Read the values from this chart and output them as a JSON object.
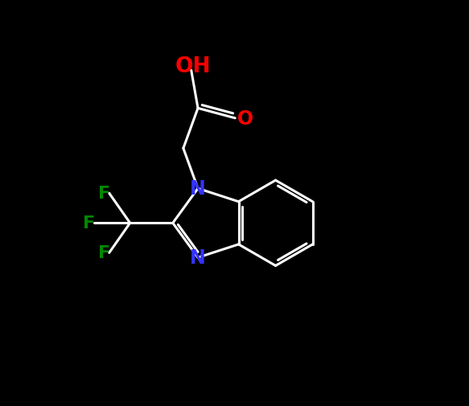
{
  "background_color": "#000000",
  "bond_color": "#ffffff",
  "N_color": "#3333ff",
  "O_color": "#ff0000",
  "F_color": "#008800",
  "line_width": 2.2,
  "font_size_atoms": 17,
  "fig_width": 5.83,
  "fig_height": 5.06,
  "dpi": 100,
  "xlim": [
    0,
    10
  ],
  "ylim": [
    0,
    10
  ]
}
